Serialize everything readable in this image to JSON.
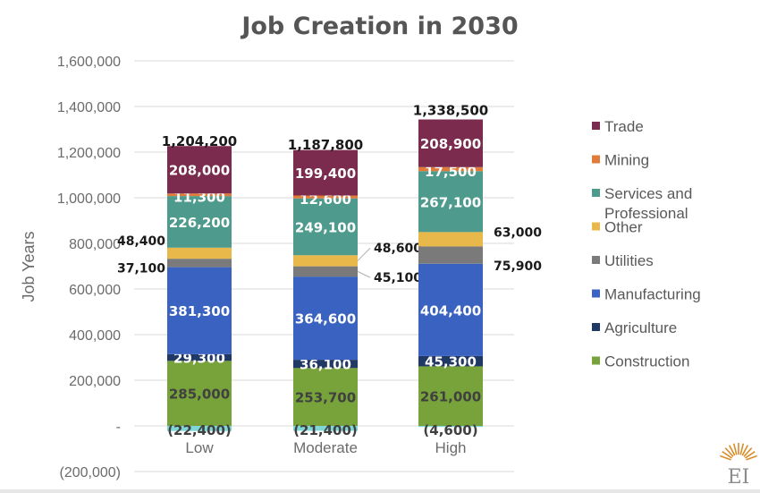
{
  "chart_data": {
    "type": "bar",
    "stacked": true,
    "title": "Job Creation in 2030",
    "ylabel": "Job Years",
    "xlabel": "",
    "ylim": [
      -200000,
      1600000
    ],
    "yticks": [
      -200000,
      0,
      200000,
      400000,
      600000,
      800000,
      1000000,
      1200000,
      1400000,
      1600000
    ],
    "ytick_labels": [
      "(200,000)",
      "-",
      "200,000",
      "400,000",
      "600,000",
      "800,000",
      "1,000,000",
      "1,200,000",
      "1,400,000",
      "1,600,000"
    ],
    "grid": true,
    "legend_position": "right",
    "categories": [
      "Low",
      "Moderate",
      "High"
    ],
    "series": [
      {
        "name": "Construction",
        "color": "#77a33a",
        "values": [
          285000,
          253700,
          261000
        ],
        "labels": [
          "285,000",
          "253,700",
          "261,000"
        ]
      },
      {
        "name": "Agriculture",
        "color": "#1f3864",
        "values": [
          29300,
          36100,
          45300
        ],
        "labels": [
          "29,300",
          "36,100",
          "45,300"
        ]
      },
      {
        "name": "Manufacturing",
        "color": "#3a62c0",
        "values": [
          381300,
          364600,
          404400
        ],
        "labels": [
          "381,300",
          "364,600",
          "404,400"
        ]
      },
      {
        "name": "Utilities",
        "color": "#7a7a7a",
        "values": [
          37100,
          45100,
          75900
        ],
        "labels": [
          "37,100",
          "45,100",
          "75,900"
        ]
      },
      {
        "name": "Other",
        "color": "#e8b84b",
        "values": [
          48400,
          48600,
          63000
        ],
        "labels": [
          "48,400",
          "48,600",
          "63,000"
        ]
      },
      {
        "name": "Services and Professional",
        "color": "#4e9a8c",
        "values": [
          226200,
          249100,
          267100
        ],
        "labels": [
          "226,200",
          "249,100",
          "267,100"
        ]
      },
      {
        "name": "Mining",
        "color": "#e07b39",
        "values": [
          11300,
          12600,
          17500
        ],
        "labels": [
          "11,300",
          "12,600",
          "17,500"
        ]
      },
      {
        "name": "Trade",
        "color": "#7b2c4e",
        "values": [
          208000,
          199400,
          208900
        ],
        "labels": [
          "208,000",
          "199,400",
          "208,900"
        ]
      }
    ],
    "negative": {
      "color": "#7fd6d6",
      "values": [
        -22400,
        -21400,
        -4600
      ],
      "labels": [
        "(22,400)",
        "(21,400)",
        "(4,600)"
      ]
    },
    "totals": {
      "values": [
        1204200,
        1187800,
        1338500
      ],
      "labels": [
        "1,204,200",
        "1,187,800",
        "1,338,500"
      ]
    }
  },
  "legend_order": [
    "Trade",
    "Mining",
    "Services and Professional",
    "Other",
    "Utilities",
    "Manufacturing",
    "Agriculture",
    "Construction"
  ],
  "logo": {
    "text": "EI",
    "color": "#d98c2b"
  }
}
